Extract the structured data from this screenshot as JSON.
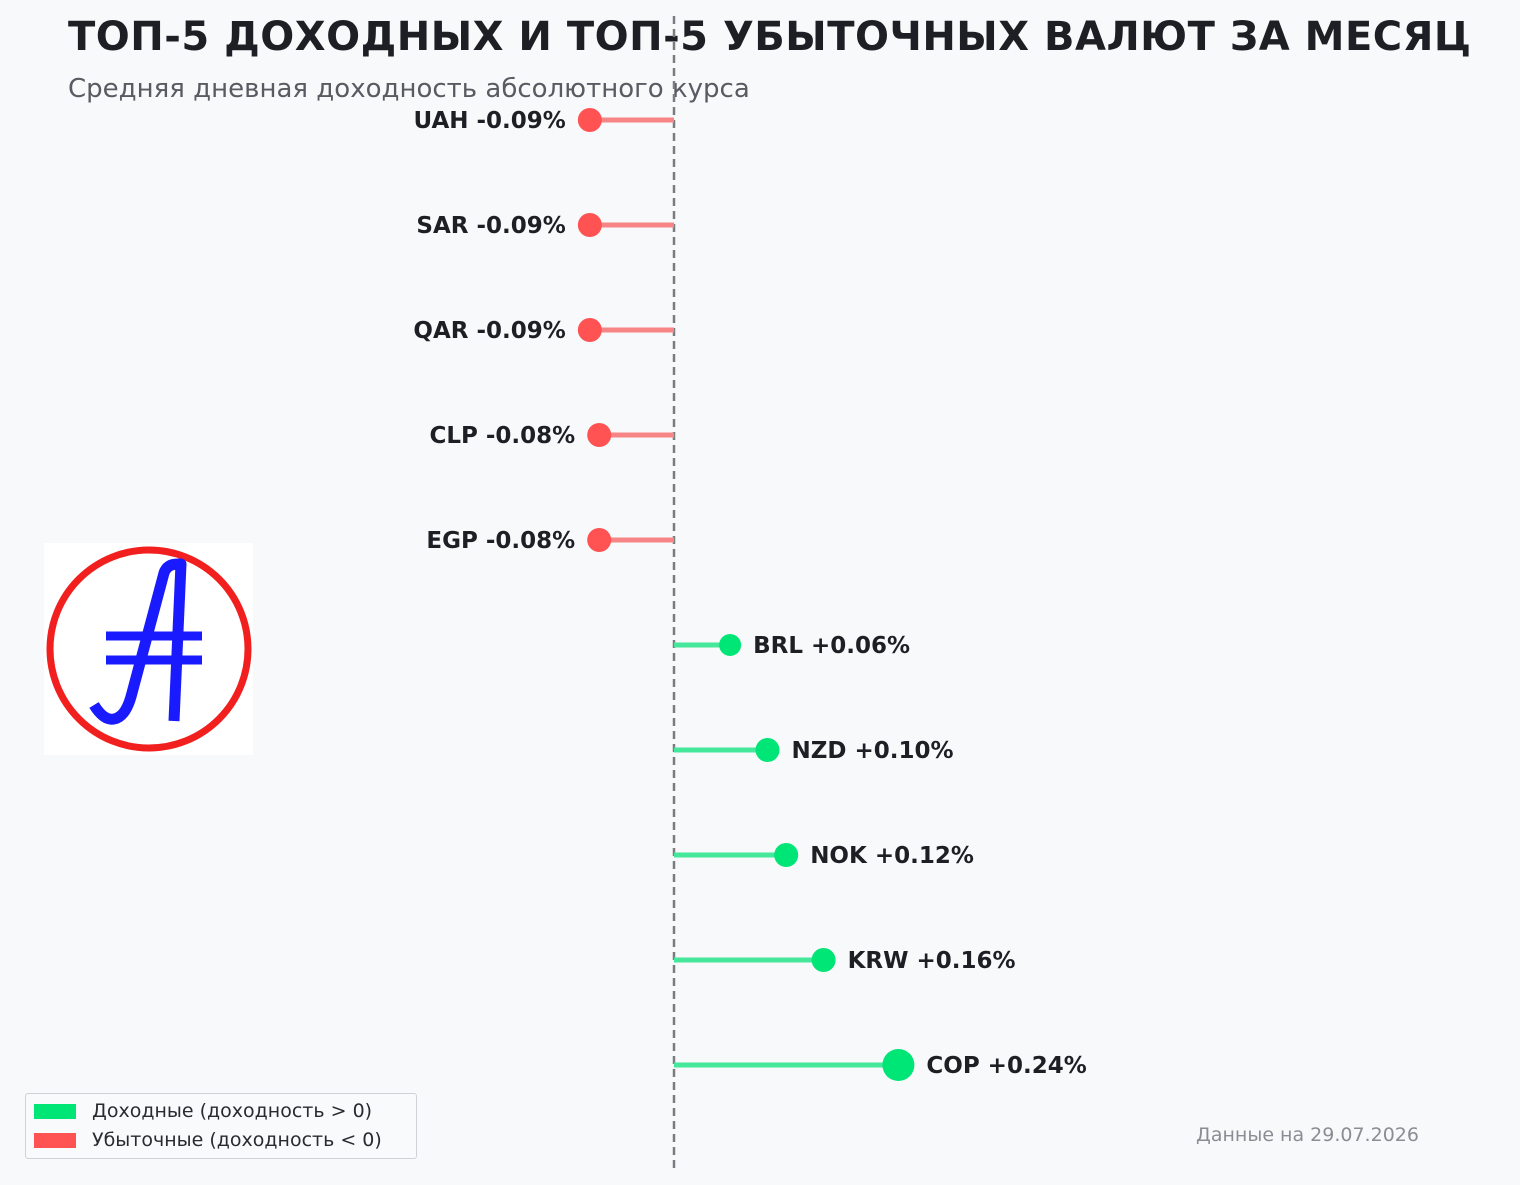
{
  "title": "ТОП-5 ДОХОДНЫХ И ТОП-5 УБЫТОЧНЫХ ВАЛЮТ ЗА МЕСЯЦ",
  "subtitle": "Средняя дневная доходность абсолютного курса",
  "footnote": "Данные на 29.07.2026",
  "legend": {
    "positive": "Доходные (доходность > 0)",
    "negative": "Убыточные (доходность < 0)",
    "position": "bottom-left"
  },
  "colors": {
    "positive": "#00e676",
    "positive_line": "#45e79a",
    "negative": "#ff5252",
    "negative_line": "#f88585",
    "zero_line": "#7a7c80"
  },
  "logo": {
    "icon": "currency-a-icon",
    "ring_color": "#f21f1f",
    "glyph_color": "#1a1aff"
  },
  "chart_data": {
    "type": "lollipop",
    "orientation": "horizontal",
    "reference_line": 0,
    "items": [
      {
        "currency": "UAH",
        "value": -0.09,
        "label": "UAH -0.09%"
      },
      {
        "currency": "SAR",
        "value": -0.09,
        "label": "SAR -0.09%"
      },
      {
        "currency": "QAR",
        "value": -0.09,
        "label": "QAR -0.09%"
      },
      {
        "currency": "CLP",
        "value": -0.08,
        "label": "CLP -0.08%"
      },
      {
        "currency": "EGP",
        "value": -0.08,
        "label": "EGP -0.08%"
      },
      {
        "currency": "BRL",
        "value": 0.06,
        "label": "BRL +0.06%"
      },
      {
        "currency": "NZD",
        "value": 0.1,
        "label": "NZD +0.10%"
      },
      {
        "currency": "NOK",
        "value": 0.12,
        "label": "NOK +0.12%"
      },
      {
        "currency": "KRW",
        "value": 0.16,
        "label": "KRW +0.16%"
      },
      {
        "currency": "COP",
        "value": 0.24,
        "label": "COP +0.24%"
      }
    ]
  }
}
